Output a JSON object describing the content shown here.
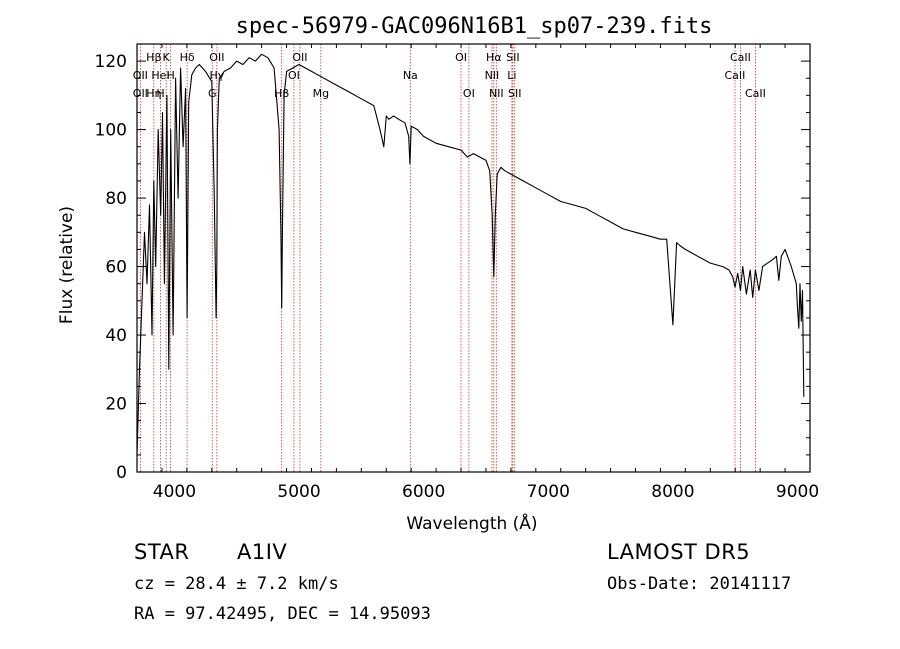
{
  "chart_data": {
    "type": "line",
    "title": "spec-56979-GAC096N16B1_sp07-239.fits",
    "xlabel": "Wavelength (Å)",
    "ylabel": "Flux (relative)",
    "xlim": [
      3700,
      9100
    ],
    "ylim": [
      0,
      125
    ],
    "xticks": [
      4000,
      5000,
      6000,
      7000,
      8000,
      9000
    ],
    "yticks": [
      0,
      20,
      40,
      60,
      80,
      100,
      120
    ],
    "grid": false,
    "series": [
      {
        "color": "#000000",
        "x": [
          3700,
          3720,
          3740,
          3760,
          3780,
          3800,
          3820,
          3835,
          3850,
          3870,
          3890,
          3905,
          3920,
          3940,
          3955,
          3970,
          3990,
          4010,
          4030,
          4050,
          4070,
          4090,
          4102,
          4115,
          4140,
          4170,
          4200,
          4250,
          4300,
          4320,
          4335,
          4340,
          4345,
          4360,
          4400,
          4450,
          4500,
          4550,
          4600,
          4650,
          4700,
          4750,
          4800,
          4840,
          4855,
          4861,
          4868,
          4880,
          4900,
          4950,
          5000,
          5050,
          5100,
          5150,
          5200,
          5300,
          5400,
          5500,
          5600,
          5650,
          5680,
          5700,
          5720,
          5760,
          5800,
          5850,
          5880,
          5890,
          5900,
          5950,
          6000,
          6100,
          6200,
          6300,
          6350,
          6400,
          6450,
          6500,
          6530,
          6550,
          6563,
          6575,
          6590,
          6620,
          6650,
          6700,
          6800,
          6900,
          7000,
          7100,
          7200,
          7300,
          7400,
          7500,
          7600,
          7700,
          7800,
          7900,
          7950,
          8000,
          8030,
          8060,
          8100,
          8200,
          8300,
          8400,
          8450,
          8480,
          8498,
          8520,
          8542,
          8560,
          8590,
          8620,
          8640,
          8662,
          8690,
          8720,
          8760,
          8800,
          8830,
          8850,
          8870,
          8900,
          8950,
          8990,
          9000,
          9010,
          9020,
          9030,
          9040,
          9050
        ],
        "values": [
          5,
          30,
          50,
          70,
          55,
          78,
          40,
          85,
          60,
          100,
          75,
          105,
          55,
          110,
          30,
          100,
          40,
          115,
          80,
          118,
          95,
          112,
          45,
          108,
          116,
          118,
          119,
          117,
          114,
          80,
          45,
          60,
          100,
          115,
          117,
          118,
          120,
          119,
          121,
          120,
          122,
          121,
          118,
          100,
          70,
          48,
          75,
          110,
          117,
          118,
          119,
          118,
          117,
          116,
          115,
          113,
          111,
          109,
          107,
          100,
          95,
          104,
          103,
          104,
          103,
          102,
          98,
          90,
          101,
          100,
          98,
          96,
          95,
          94,
          92,
          93,
          92,
          91,
          88,
          75,
          57,
          75,
          87,
          89,
          88,
          87,
          85,
          83,
          81,
          79,
          78,
          77,
          75,
          73,
          71,
          70,
          69,
          68,
          68,
          43,
          67,
          66,
          65,
          63,
          61,
          60,
          59,
          57,
          54,
          58,
          53,
          60,
          52,
          59,
          51,
          59,
          53,
          60,
          61,
          62,
          63,
          56,
          63,
          65,
          60,
          55,
          48,
          42,
          55,
          44,
          53,
          22
        ]
      }
    ],
    "line_markers": [
      {
        "name": "Hβ",
        "wavelength": 3835,
        "row": 1
      },
      {
        "name": "K",
        "wavelength": 3934,
        "row": 1
      },
      {
        "name": "Hδ",
        "wavelength": 4102,
        "row": 1
      },
      {
        "name": "OII",
        "wavelength": 4341,
        "row": 1
      },
      {
        "name": "OII",
        "wavelength": 5007,
        "row": 1
      },
      {
        "name": "OI",
        "wavelength": 6300,
        "row": 1
      },
      {
        "name": "Hα",
        "wavelength": 6563,
        "row": 1
      },
      {
        "name": "SII",
        "wavelength": 6716,
        "row": 1
      },
      {
        "name": "CaII",
        "wavelength": 8542,
        "row": 1
      },
      {
        "name": "OII",
        "wavelength": 3727,
        "row": 2
      },
      {
        "name": "HeI",
        "wavelength": 3889,
        "row": 2
      },
      {
        "name": "H",
        "wavelength": 3970,
        "row": 2
      },
      {
        "name": "Hγ",
        "wavelength": 4341,
        "row": 2
      },
      {
        "name": "OI",
        "wavelength": 4959,
        "row": 2
      },
      {
        "name": "Na",
        "wavelength": 5893,
        "row": 2
      },
      {
        "name": "NII",
        "wavelength": 6548,
        "row": 2
      },
      {
        "name": "Li",
        "wavelength": 6708,
        "row": 2
      },
      {
        "name": "CaII",
        "wavelength": 8498,
        "row": 2
      },
      {
        "name": "OII",
        "wavelength": 3727,
        "row": 3
      },
      {
        "name": "Hη",
        "wavelength": 3835,
        "row": 3
      },
      {
        "name": "H",
        "wavelength": 3889,
        "row": 3
      },
      {
        "name": "G",
        "wavelength": 4304,
        "row": 3
      },
      {
        "name": "Hβ",
        "wavelength": 4861,
        "row": 3
      },
      {
        "name": "Mg",
        "wavelength": 5175,
        "row": 3
      },
      {
        "name": "OI",
        "wavelength": 6363,
        "row": 3
      },
      {
        "name": "NII",
        "wavelength": 6583,
        "row": 3
      },
      {
        "name": "SII",
        "wavelength": 6731,
        "row": 3
      },
      {
        "name": "CaII",
        "wavelength": 8662,
        "row": 3
      }
    ]
  },
  "info": {
    "object_class": "STAR",
    "subclass": "A1IV",
    "survey": "LAMOST DR5",
    "redshift": "cz = 28.4 ± 7.2 km/s",
    "obs_date": "Obs-Date: 20141117",
    "coords": "RA =  97.42495, DEC =  14.95093"
  }
}
